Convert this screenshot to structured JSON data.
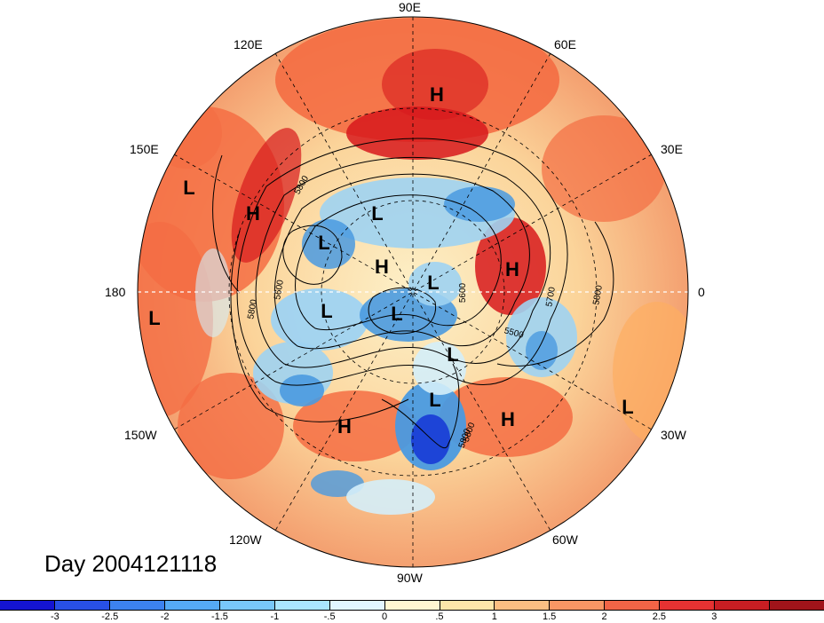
{
  "map": {
    "projection": "north-polar-stereographic",
    "field": "500 hPa geopotential height anomaly",
    "longitude_labels": {
      "lon_90e": "90E",
      "lon_60e": "60E",
      "lon_30e": "30E",
      "lon_0": "0",
      "lon_30w": "30W",
      "lon_60w": "60W",
      "lon_90w": "90W",
      "lon_120w": "120W",
      "lon_150w": "150W",
      "lon_180": "180",
      "lon_150e": "150E",
      "lon_120e": "120E"
    },
    "contour_labels": [
      "5800",
      "5600",
      "5800",
      "5500",
      "5700",
      "5800",
      "5600",
      "5800",
      "5800"
    ],
    "pressure_centers": [
      {
        "type": "H"
      },
      {
        "type": "L"
      },
      {
        "type": "H"
      },
      {
        "type": "L"
      },
      {
        "type": "L"
      },
      {
        "type": "H"
      },
      {
        "type": "L"
      },
      {
        "type": "H"
      },
      {
        "type": "L"
      },
      {
        "type": "L"
      },
      {
        "type": "L"
      },
      {
        "type": "L"
      },
      {
        "type": "L"
      },
      {
        "type": "H"
      },
      {
        "type": "H"
      },
      {
        "type": "L"
      }
    ],
    "colors": {
      "strong_positive": "#d7191c",
      "positive": "#f46d43",
      "weak_positive": "#fdae61",
      "slight_positive": "#fee6b0",
      "slight_negative": "#d4eefa",
      "weak_negative": "#9fd3f2",
      "negative": "#4a9ae0",
      "strong_negative": "#1a3fd6"
    }
  },
  "title": {
    "day_label": "Day 2004121118"
  },
  "colorbar": {
    "colors": [
      "#1414d2",
      "#2850e6",
      "#3c82f0",
      "#55aaf5",
      "#78c8fa",
      "#aae6ff",
      "#e2f6ff",
      "#fff7d2",
      "#fde6aa",
      "#fbbe82",
      "#f89664",
      "#f26446",
      "#e63232",
      "#c81e23",
      "#a0141a"
    ],
    "ticks": [
      "-3",
      "-2.5",
      "-2",
      "-1.5",
      "-1",
      "-.5",
      "0",
      ".5",
      "1",
      "1.5",
      "2",
      "2.5",
      "3"
    ]
  }
}
